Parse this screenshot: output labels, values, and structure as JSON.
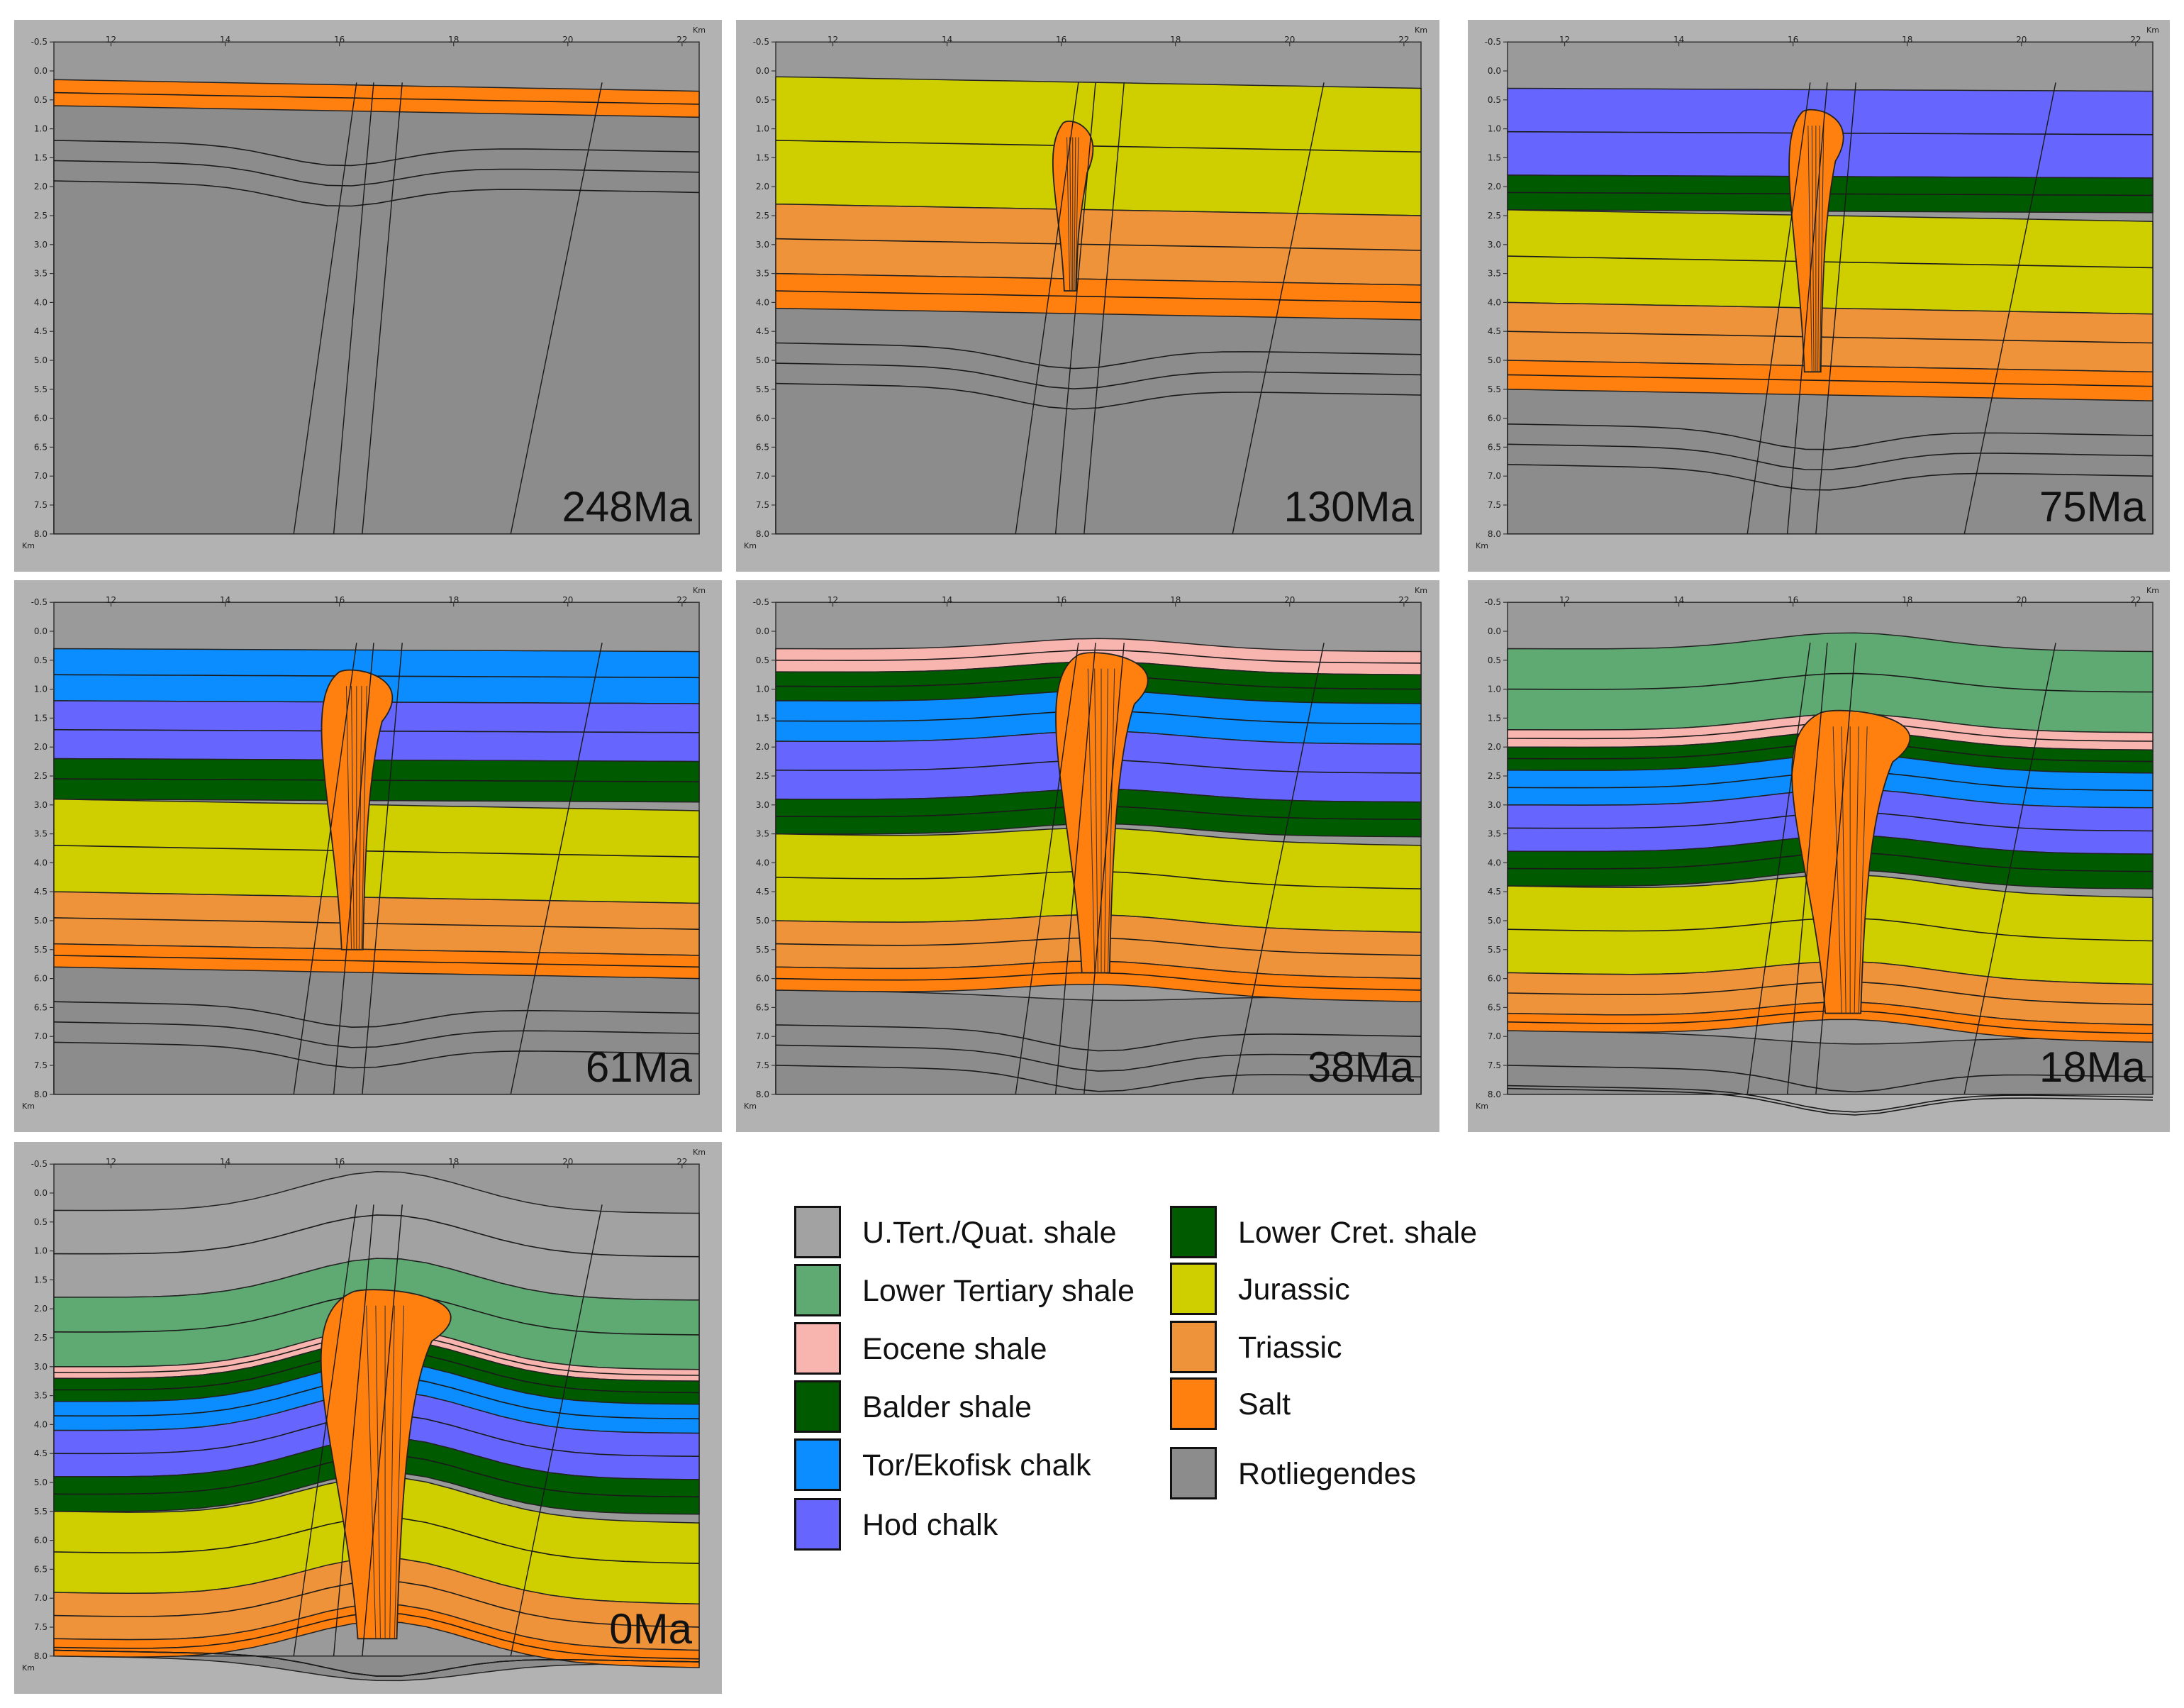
{
  "colors": {
    "rotliegendes": "#8c8c8c",
    "salt": "#ff7f0f",
    "triassic": "#ee9339",
    "jurassic": "#cfcf00",
    "lower_cret_shale": "#005a00",
    "hod_chalk": "#6666ff",
    "tor_ekofisk_chalk": "#0b8dff",
    "balder_shale": "#005a00",
    "eocene_shale": "#f8b4ae",
    "lower_tertiary_shale": "#5fa973",
    "u_tert_quat_shale": "#a2a2a2",
    "panel_frame": "#b2b2b2",
    "plot_background": "#9a9a9a"
  },
  "axes": {
    "x_ticks": [
      "12",
      "14",
      "16",
      "18",
      "20",
      "22"
    ],
    "x_unit": "Km",
    "y_ticks": [
      "-0.5",
      "0.0",
      "0.5",
      "1.0",
      "1.5",
      "2.0",
      "2.5",
      "3.0",
      "3.5",
      "4.0",
      "4.5",
      "5.0",
      "5.5",
      "6.0",
      "6.5",
      "7.0",
      "7.5",
      "8.0"
    ],
    "y_unit": "Km"
  },
  "panels": [
    {
      "age": "248Ma"
    },
    {
      "age": "130Ma"
    },
    {
      "age": "75Ma"
    },
    {
      "age": "61Ma"
    },
    {
      "age": "38Ma"
    },
    {
      "age": "18Ma"
    },
    {
      "age": "0Ma"
    }
  ],
  "legend": {
    "left": [
      {
        "label": "U.Tert./Quat. shale",
        "color": "#a2a2a2"
      },
      {
        "label": "Lower Tertiary shale",
        "color": "#5fa973"
      },
      {
        "label": "Eocene shale",
        "color": "#f8b4ae"
      },
      {
        "label": "Balder shale",
        "color": "#005a00"
      },
      {
        "label": "Tor/Ekofisk chalk",
        "color": "#0b8dff"
      },
      {
        "label": "Hod chalk",
        "color": "#6666ff"
      }
    ],
    "right": [
      {
        "label": "Lower Cret. shale",
        "color": "#005a00"
      },
      {
        "label": "Jurassic",
        "color": "#cfcf00"
      },
      {
        "label": "Triassic",
        "color": "#ee9339"
      },
      {
        "label": "Salt",
        "color": "#ff7f0f"
      },
      {
        "label": "Rotliegendes",
        "color": "#8c8c8c"
      }
    ]
  }
}
